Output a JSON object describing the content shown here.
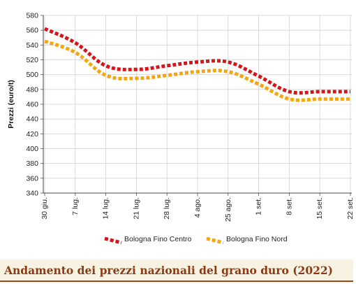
{
  "chart_data": {
    "type": "line",
    "title": "Andamento dei prezzi nazionali del grano duro (2022)",
    "ylabel": "Prezzi (euro/t)",
    "xlabel": "",
    "ylim": [
      340,
      580
    ],
    "yticks": [
      340,
      360,
      380,
      400,
      420,
      440,
      460,
      480,
      500,
      520,
      540,
      560,
      580
    ],
    "categories": [
      "30 giu.",
      "7 lug.",
      "14 lug.",
      "21 lug.",
      "28 lug.",
      "4 ago.",
      "25 ago.",
      "1 set.",
      "8 set.",
      "15 set.",
      "22 set."
    ],
    "grid": true,
    "legend_position": "bottom",
    "series": [
      {
        "name": "Bologna Fino Centro",
        "color": "#d7141a",
        "values": [
          562,
          543,
          512,
          507,
          512,
          517,
          517,
          498,
          477,
          477,
          477
        ]
      },
      {
        "name": "Bologna Fino Nord",
        "color": "#f5a60a",
        "values": [
          545,
          530,
          499,
          495,
          499,
          504,
          504,
          487,
          467,
          467,
          467
        ]
      }
    ]
  }
}
